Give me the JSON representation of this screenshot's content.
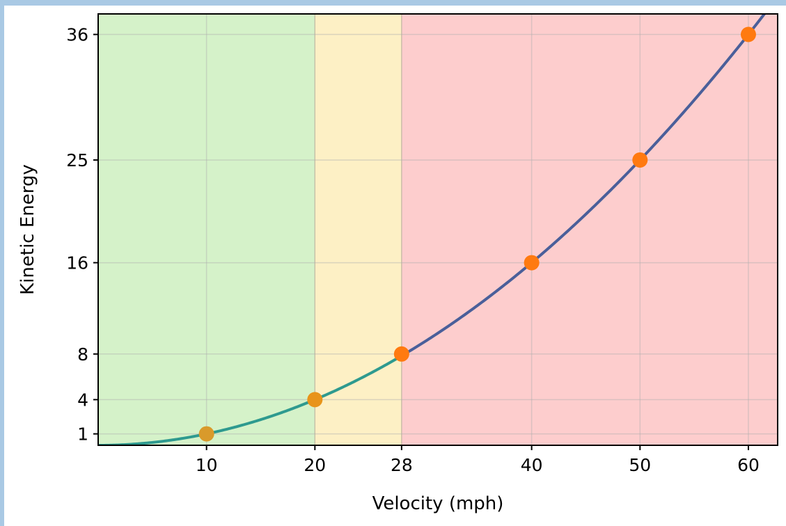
{
  "chart_data": {
    "type": "line",
    "xlabel": "Velocity (mph)",
    "ylabel": "Kinetic Energy",
    "xlim": [
      0,
      62.7
    ],
    "ylim": [
      0,
      37.8
    ],
    "x_ticks": [
      10,
      20,
      28,
      40,
      50,
      60
    ],
    "y_ticks": [
      1,
      4,
      8,
      16,
      25,
      36
    ],
    "grid": true,
    "zones": [
      {
        "from": 0,
        "to": 20,
        "color": "#d5f2c9"
      },
      {
        "from": 20,
        "to": 28,
        "color": "#fdf0c5"
      },
      {
        "from": 28,
        "to": 62.7,
        "color": "#fdcdcd"
      }
    ],
    "curve": {
      "relation": "y = (x/10)^2",
      "color_low": "#2e9a8f",
      "color_high": "#4a5f9a",
      "color_change_x": 28
    },
    "points": [
      {
        "x": 10,
        "y": 1,
        "color": "#d99a2b"
      },
      {
        "x": 20,
        "y": 4,
        "color": "#e8941a"
      },
      {
        "x": 28,
        "y": 8,
        "color": "#ff7a10"
      },
      {
        "x": 40,
        "y": 16,
        "color": "#ff7a10"
      },
      {
        "x": 50,
        "y": 25,
        "color": "#ff7a10"
      },
      {
        "x": 60,
        "y": 36,
        "color": "#ff7a10"
      }
    ]
  }
}
